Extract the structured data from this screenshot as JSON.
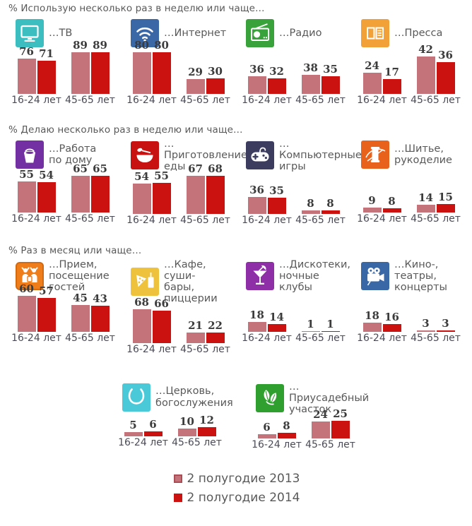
{
  "legend": [
    {
      "label": "2 полугодие 2013",
      "color": "#c4737b"
    },
    {
      "label": "2 полугодие 2014",
      "color": "#cc1111"
    }
  ],
  "sections": [
    {
      "header": "% Использую несколько раз в неделю или чаще…",
      "charts": [
        {
          "icon": "tv-icon",
          "icon_color": "#3cbdc0",
          "label": "…ТВ",
          "groups": [
            {
              "label": "16-24 лет",
              "values": [
                76,
                71
              ]
            },
            {
              "label": "45-65 лет",
              "values": [
                89,
                89
              ]
            }
          ]
        },
        {
          "icon": "wifi-icon",
          "icon_color": "#3a67a5",
          "label": "…Интернет",
          "groups": [
            {
              "label": "16-24 лет",
              "values": [
                80,
                80
              ]
            },
            {
              "label": "45-65 лет",
              "values": [
                29,
                30
              ]
            }
          ]
        },
        {
          "icon": "radio-icon",
          "icon_color": "#3aa23a",
          "label": "…Радио",
          "groups": [
            {
              "label": "16-24 лет",
              "values": [
                36,
                32
              ]
            },
            {
              "label": "45-65 лет",
              "values": [
                38,
                35
              ]
            }
          ]
        },
        {
          "icon": "press-icon",
          "icon_color": "#f2a138",
          "label": "…Пресса",
          "groups": [
            {
              "label": "16-24 лет",
              "values": [
                24,
                17
              ]
            },
            {
              "label": "45-65 лет",
              "values": [
                42,
                36
              ]
            }
          ]
        }
      ]
    },
    {
      "header": "% Делаю несколько раз в неделю или чаще…",
      "charts": [
        {
          "icon": "bucket-icon",
          "icon_color": "#7230a2",
          "label": "…Работа\nпо дому",
          "groups": [
            {
              "label": "16-24 лет",
              "values": [
                55,
                54
              ]
            },
            {
              "label": "45-65 лет",
              "values": [
                65,
                65
              ]
            }
          ]
        },
        {
          "icon": "bowl-icon",
          "icon_color": "#c81212",
          "label": "…Приготовление\nеды",
          "groups": [
            {
              "label": "16-24 лет",
              "values": [
                54,
                55
              ]
            },
            {
              "label": "45-65 лет",
              "values": [
                67,
                68
              ]
            }
          ]
        },
        {
          "icon": "gamepad-icon",
          "icon_color": "#3c3c5e",
          "label": "…Компьютерные\nигры",
          "groups": [
            {
              "label": "16-24 лет",
              "values": [
                36,
                35
              ]
            },
            {
              "label": "45-65 лет",
              "values": [
                8,
                8
              ]
            }
          ]
        },
        {
          "icon": "sewing-icon",
          "icon_color": "#e8621c",
          "label": "…Шитье,\nрукоделие",
          "groups": [
            {
              "label": "16-24 лет",
              "values": [
                9,
                8
              ]
            },
            {
              "label": "45-65 лет",
              "values": [
                14,
                15
              ]
            }
          ]
        }
      ]
    },
    {
      "header": "% Раз в месяц или чаще…",
      "charts": [
        {
          "icon": "guests-icon",
          "icon_color": "#ef7d1a",
          "label": "…Прием,\nпосещение гостей",
          "groups": [
            {
              "label": "16-24 лет",
              "values": [
                60,
                57
              ]
            },
            {
              "label": "45-65 лет",
              "values": [
                45,
                43
              ]
            }
          ]
        },
        {
          "icon": "pizza-icon",
          "icon_color": "#efc23e",
          "label": "…Кафе, суши-\nбары, пиццерии",
          "groups": [
            {
              "label": "16-24 лет",
              "values": [
                68,
                66
              ]
            },
            {
              "label": "45-65 лет",
              "values": [
                21,
                22
              ]
            }
          ]
        },
        {
          "icon": "cocktail-icon",
          "icon_color": "#8e2fa8",
          "label": "…Дискотеки,\nночные клубы",
          "groups": [
            {
              "label": "16-24 лет",
              "values": [
                18,
                14
              ]
            },
            {
              "label": "45-65 лет",
              "values": [
                1,
                1
              ]
            }
          ]
        },
        {
          "icon": "movie-camera-icon",
          "icon_color": "#3a67a5",
          "label": "…Кино-, театры,\nконцерты",
          "groups": [
            {
              "label": "16-24 лет",
              "values": [
                18,
                16
              ]
            },
            {
              "label": "45-65 лет",
              "values": [
                3,
                3
              ]
            }
          ]
        }
      ]
    },
    {
      "header": "",
      "charts": [
        {
          "icon": "hands-icon",
          "icon_color": "#4ac9d9",
          "label": "…Церковь,\nбогослужения",
          "groups": [
            {
              "label": "16-24 лет",
              "values": [
                5,
                6
              ]
            },
            {
              "label": "45-65 лет",
              "values": [
                10,
                12
              ]
            }
          ]
        },
        {
          "icon": "leaves-icon",
          "icon_color": "#2fa02f",
          "label": "…Приусадебный\nучасток",
          "groups": [
            {
              "label": "16-24 лет",
              "values": [
                6,
                8
              ]
            },
            {
              "label": "45-65 лет",
              "values": [
                24,
                25
              ]
            }
          ]
        }
      ]
    }
  ],
  "chart_data": [
    {
      "type": "bar",
      "title": "…ТВ",
      "group": "% Использую несколько раз в неделю или чаще…",
      "categories": [
        "16-24 лет",
        "45-65 лет"
      ],
      "series": [
        {
          "name": "2 полугодие 2013",
          "values": [
            76,
            89
          ]
        },
        {
          "name": "2 полугодие 2014",
          "values": [
            71,
            89
          ]
        }
      ]
    },
    {
      "type": "bar",
      "title": "…Интернет",
      "group": "% Использую несколько раз в неделю или чаще…",
      "categories": [
        "16-24 лет",
        "45-65 лет"
      ],
      "series": [
        {
          "name": "2 полугодие 2013",
          "values": [
            80,
            29
          ]
        },
        {
          "name": "2 полугодие 2014",
          "values": [
            80,
            30
          ]
        }
      ]
    },
    {
      "type": "bar",
      "title": "…Радио",
      "group": "% Использую несколько раз в неделю или чаще…",
      "categories": [
        "16-24 лет",
        "45-65 лет"
      ],
      "series": [
        {
          "name": "2 полугодие 2013",
          "values": [
            36,
            38
          ]
        },
        {
          "name": "2 полугодие 2014",
          "values": [
            32,
            35
          ]
        }
      ]
    },
    {
      "type": "bar",
      "title": "…Пресса",
      "group": "% Использую несколько раз в неделю или чаще…",
      "categories": [
        "16-24 лет",
        "45-65 лет"
      ],
      "series": [
        {
          "name": "2 полугодие 2013",
          "values": [
            24,
            42
          ]
        },
        {
          "name": "2 полугодие 2014",
          "values": [
            17,
            36
          ]
        }
      ]
    },
    {
      "type": "bar",
      "title": "…Работа по дому",
      "group": "% Делаю несколько раз в неделю или чаще…",
      "categories": [
        "16-24 лет",
        "45-65 лет"
      ],
      "series": [
        {
          "name": "2 полугодие 2013",
          "values": [
            55,
            65
          ]
        },
        {
          "name": "2 полугодие 2014",
          "values": [
            54,
            65
          ]
        }
      ]
    },
    {
      "type": "bar",
      "title": "…Приготовление еды",
      "group": "% Делаю несколько раз в неделю или чаще…",
      "categories": [
        "16-24 лет",
        "45-65 лет"
      ],
      "series": [
        {
          "name": "2 полугодие 2013",
          "values": [
            54,
            67
          ]
        },
        {
          "name": "2 полугодие 2014",
          "values": [
            55,
            68
          ]
        }
      ]
    },
    {
      "type": "bar",
      "title": "…Компьютерные игры",
      "group": "% Делаю несколько раз в неделю или чаще…",
      "categories": [
        "16-24 лет",
        "45-65 лет"
      ],
      "series": [
        {
          "name": "2 полугодие 2013",
          "values": [
            36,
            8
          ]
        },
        {
          "name": "2 полугодие 2014",
          "values": [
            35,
            8
          ]
        }
      ]
    },
    {
      "type": "bar",
      "title": "…Шитье, рукоделие",
      "group": "% Делаю несколько раз в неделю или чаще…",
      "categories": [
        "16-24 лет",
        "45-65 лет"
      ],
      "series": [
        {
          "name": "2 полугодие 2013",
          "values": [
            9,
            14
          ]
        },
        {
          "name": "2 полугодие 2014",
          "values": [
            8,
            15
          ]
        }
      ]
    },
    {
      "type": "bar",
      "title": "…Прием, посещение гостей",
      "group": "% Раз в месяц или чаще…",
      "categories": [
        "16-24 лет",
        "45-65 лет"
      ],
      "series": [
        {
          "name": "2 полугодие 2013",
          "values": [
            60,
            45
          ]
        },
        {
          "name": "2 полугодие 2014",
          "values": [
            57,
            43
          ]
        }
      ]
    },
    {
      "type": "bar",
      "title": "…Кафе, суши-бары, пиццерии",
      "group": "% Раз в месяц или чаще…",
      "categories": [
        "16-24 лет",
        "45-65 лет"
      ],
      "series": [
        {
          "name": "2 полугодие 2013",
          "values": [
            68,
            21
          ]
        },
        {
          "name": "2 полугодие 2014",
          "values": [
            66,
            22
          ]
        }
      ]
    },
    {
      "type": "bar",
      "title": "…Дискотеки, ночные клубы",
      "group": "% Раз в месяц или чаще…",
      "categories": [
        "16-24 лет",
        "45-65 лет"
      ],
      "series": [
        {
          "name": "2 полугодие 2013",
          "values": [
            18,
            1
          ]
        },
        {
          "name": "2 полугодие 2014",
          "values": [
            14,
            1
          ]
        }
      ]
    },
    {
      "type": "bar",
      "title": "…Кино-, театры, концерты",
      "group": "% Раз в месяц или чаще…",
      "categories": [
        "16-24 лет",
        "45-65 лет"
      ],
      "series": [
        {
          "name": "2 полугодие 2013",
          "values": [
            18,
            3
          ]
        },
        {
          "name": "2 полугодие 2014",
          "values": [
            16,
            3
          ]
        }
      ]
    },
    {
      "type": "bar",
      "title": "…Церковь, богослужения",
      "group": "% Раз в месяц или чаще…",
      "categories": [
        "16-24 лет",
        "45-65 лет"
      ],
      "series": [
        {
          "name": "2 полугодие 2013",
          "values": [
            5,
            10
          ]
        },
        {
          "name": "2 полугодие 2014",
          "values": [
            6,
            12
          ]
        }
      ]
    },
    {
      "type": "bar",
      "title": "…Приусадебный участок",
      "group": "% Раз в месяц или чаще…",
      "categories": [
        "16-24 лет",
        "45-65 лет"
      ],
      "series": [
        {
          "name": "2 полугодие 2013",
          "values": [
            6,
            24
          ]
        },
        {
          "name": "2 полугодие 2014",
          "values": [
            8,
            25
          ]
        }
      ]
    }
  ]
}
